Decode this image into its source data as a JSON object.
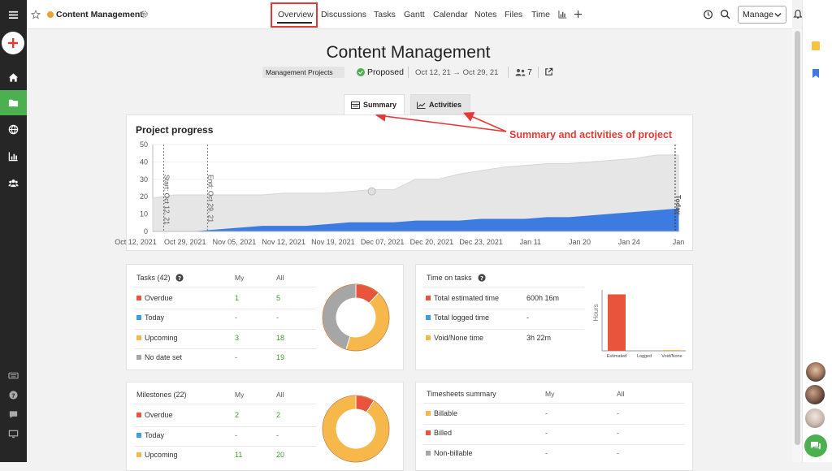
{
  "project": {
    "name": "Content Management",
    "category": "Management Projects",
    "status": "Proposed",
    "dates": "Oct 12, 21 → Oct 29, 21",
    "members": "7"
  },
  "nav": {
    "tabs": [
      "Overview",
      "Discussions",
      "Tasks",
      "Gantt",
      "Calendar",
      "Notes",
      "Files",
      "Time"
    ],
    "manage_label": "Manage"
  },
  "view_tabs": {
    "summary": "Summary",
    "activities": "Activities"
  },
  "annotation": {
    "text": "Summary and activities of project",
    "color": "#e53935"
  },
  "progress": {
    "title": "Project progress",
    "start_label": "Start: Oct 12, 21",
    "end_label": "End: Oct 29, 21",
    "today_label": "Today"
  },
  "chart_data": [
    {
      "type": "area",
      "title": "Project progress",
      "ylim": [
        0,
        50
      ],
      "yticks": [
        0,
        10,
        20,
        30,
        40,
        50
      ],
      "xtick_labels": [
        "Oct 12, 2021",
        "Oct 29, 2021",
        "Nov 05, 2021",
        "Nov 12, 2021",
        "Nov 19, 2021",
        "Dec 07, 2021",
        "Dec 20, 2021",
        "Dec 23, 2021",
        "Jan 11",
        "Jan 20",
        "Jan 24",
        "Jan"
      ],
      "x": [
        0,
        2,
        4,
        6,
        8,
        10,
        12,
        14,
        16,
        18,
        20,
        22,
        24,
        26,
        28,
        30,
        32,
        34,
        36,
        38,
        40,
        42,
        44,
        46,
        48
      ],
      "series": [
        {
          "values": [
            19,
            21,
            21,
            21,
            21,
            21,
            22,
            22,
            22,
            23,
            24,
            24,
            30,
            30,
            33,
            35,
            37,
            38,
            39,
            39,
            40,
            41,
            42,
            44,
            44
          ],
          "color": "#e6e6e6"
        },
        {
          "values": [
            0,
            0,
            0,
            1,
            2,
            3,
            3,
            3,
            4,
            5,
            5,
            5,
            6,
            6,
            6,
            7,
            7,
            7,
            8,
            8,
            9,
            10,
            11,
            12,
            13
          ],
          "color": "#3d7be0"
        }
      ],
      "markers": [
        {
          "label": "Start: Oct 12, 21",
          "x": 1
        },
        {
          "label": "End: Oct 29, 21",
          "x": 5
        },
        {
          "label": "Today",
          "x": 47.7
        }
      ]
    },
    {
      "type": "pie",
      "title": "Tasks (42)",
      "slices": [
        {
          "label": "Overdue",
          "value": 5,
          "color": "#e8543c"
        },
        {
          "label": "Today",
          "value": 0,
          "color": "#3aa0e0"
        },
        {
          "label": "Upcoming",
          "value": 18,
          "color": "#f7b84b"
        },
        {
          "label": "No date set",
          "value": 19,
          "color": "#a6a6a6"
        }
      ]
    },
    {
      "type": "bar",
      "title": "Time on tasks",
      "ylabel": "Hours",
      "categories": [
        "Estimated",
        "Logged",
        "Void/None"
      ],
      "values": [
        600.27,
        0,
        3.37
      ],
      "colors": [
        "#e8543c",
        "#3aa0e0",
        "#f7b84b"
      ]
    },
    {
      "type": "pie",
      "title": "Milestones (22)",
      "slices": [
        {
          "label": "Overdue",
          "value": 2,
          "color": "#e8543c"
        },
        {
          "label": "Today",
          "value": 0,
          "color": "#3aa0e0"
        },
        {
          "label": "Upcoming",
          "value": 20,
          "color": "#f7b84b"
        }
      ]
    }
  ],
  "tasks": {
    "title": "Tasks (42)",
    "col_my": "My",
    "col_all": "All",
    "rows": [
      {
        "label": "Overdue",
        "my": "1",
        "all": "5",
        "color": "#e8543c"
      },
      {
        "label": "Today",
        "my": "-",
        "all": "-",
        "color": "#3aa0e0"
      },
      {
        "label": "Upcoming",
        "my": "3",
        "all": "18",
        "color": "#f7b84b"
      },
      {
        "label": "No date set",
        "my": "-",
        "all": "19",
        "color": "#a6a6a6"
      }
    ]
  },
  "time": {
    "title": "Time on tasks",
    "rows": [
      {
        "label": "Total estimated time",
        "value": "600h 16m",
        "color": "#e8543c"
      },
      {
        "label": "Total logged time",
        "value": "-",
        "color": "#3aa0e0"
      },
      {
        "label": "Void/None time",
        "value": "3h 22m",
        "color": "#f7b84b"
      }
    ],
    "ylabel": "Hours",
    "bar_labels": [
      "Estimated",
      "Logged",
      "Void/None"
    ]
  },
  "milestones": {
    "title": "Milestones (22)",
    "col_my": "My",
    "col_all": "All",
    "rows": [
      {
        "label": "Overdue",
        "my": "2",
        "all": "2",
        "color": "#e8543c"
      },
      {
        "label": "Today",
        "my": "-",
        "all": "-",
        "color": "#3aa0e0"
      },
      {
        "label": "Upcoming",
        "my": "11",
        "all": "20",
        "color": "#f7b84b"
      }
    ]
  },
  "timesheets": {
    "title": "Timesheets summary",
    "col_my": "My",
    "col_all": "All",
    "rows": [
      {
        "label": "Billable",
        "my": "-",
        "all": "-",
        "color": "#f7b84b"
      },
      {
        "label": "Billed",
        "my": "-",
        "all": "-",
        "color": "#e8543c"
      },
      {
        "label": "Non-billable",
        "my": "-",
        "all": "-",
        "color": "#a6a6a6"
      }
    ]
  },
  "icons": {
    "leftbar": [
      "menu-icon",
      "add-icon",
      "home-icon",
      "folder-icon",
      "globe-icon",
      "reports-icon",
      "team-icon",
      "keyboard-icon",
      "help-icon",
      "chat-icon",
      "monitor-icon"
    ],
    "rightbar": [
      "sticky-note-icon",
      "bookmark-icon",
      "chat-bubble-icon"
    ]
  },
  "colors": {
    "accent": "#4caf50",
    "status_green": "#4caf50",
    "project_dot": "#f0a030"
  }
}
